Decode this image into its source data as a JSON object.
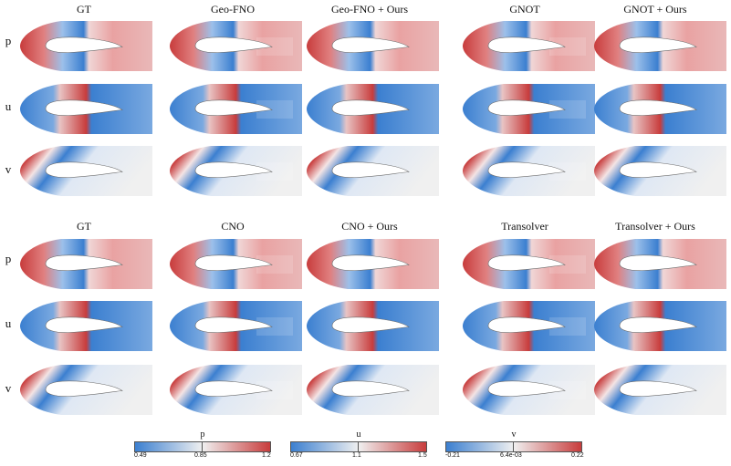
{
  "panel_groups": [
    {
      "titles": [
        "GT",
        "Geo-FNO",
        "Geo-FNO + Ours",
        "GNOT",
        "GNOT + Ours"
      ]
    },
    {
      "titles": [
        "GT",
        "CNO",
        "CNO + Ours",
        "Transolver",
        "Transolver + Ours"
      ]
    }
  ],
  "row_labels": [
    "p",
    "u",
    "v"
  ],
  "colorbars": [
    {
      "label": "p",
      "min": "0.49",
      "mid": "0.85",
      "max": "1.2"
    },
    {
      "label": "u",
      "min": "0.67",
      "mid": "1.1",
      "max": "1.5"
    },
    {
      "label": "v",
      "min": "-0.21",
      "mid": "6.4e-03",
      "max": "0.22"
    }
  ],
  "colormap": {
    "low": "#3b7fd0",
    "mid": "#f0f0f0",
    "high": "#c83c3c"
  }
}
